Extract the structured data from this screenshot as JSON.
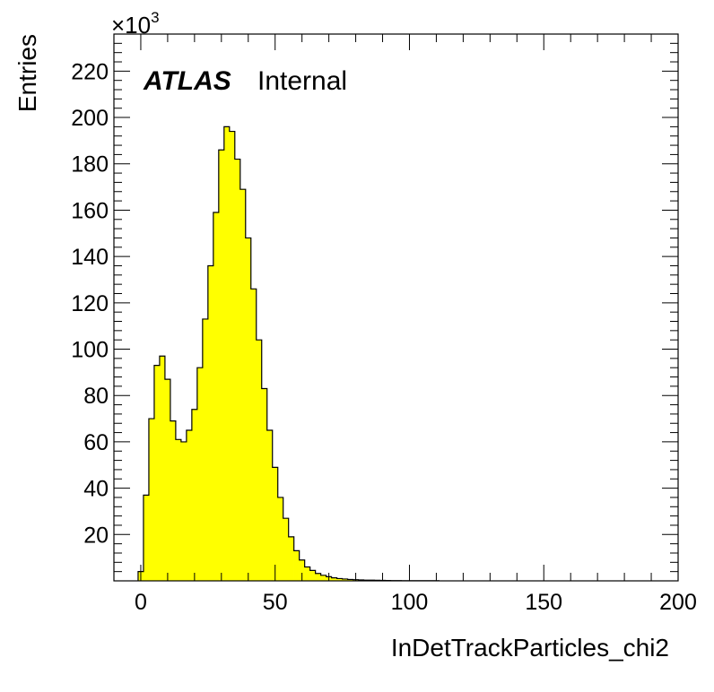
{
  "chart_data": {
    "type": "bar",
    "histogram": true,
    "xlabel": "InDetTrackParticles_chi2",
    "ylabel": "Entries",
    "multiplier": "×10",
    "multiplier_exp": "3",
    "label_bold": "ATLAS",
    "label_normal": "Internal",
    "xlim": [
      -10,
      200
    ],
    "ylim": [
      0,
      236
    ],
    "x_ticks": [
      0,
      50,
      100,
      150,
      200
    ],
    "y_ticks": [
      20,
      40,
      60,
      80,
      100,
      120,
      140,
      160,
      180,
      200,
      220
    ],
    "bin_width": 2,
    "bin_start": -1,
    "values": [
      4,
      37,
      70,
      93,
      97,
      87,
      69,
      61,
      60,
      65,
      74,
      92,
      113,
      136,
      159,
      186,
      196,
      194,
      182,
      169,
      148,
      126,
      104,
      83,
      65,
      49,
      36,
      27,
      19,
      13,
      9,
      6,
      4.5,
      3.2,
      2.4,
      1.8,
      1.3,
      1.0,
      0.8,
      0.6,
      0.5,
      0.4,
      0.3,
      0.3,
      0.25,
      0.2,
      0.15,
      0.1,
      0.1,
      0.05,
      0.05,
      0.05,
      0.05,
      0.05,
      0.05,
      0.05
    ],
    "fill_color": "#ffff00",
    "line_color": "#000000",
    "grid": false
  }
}
